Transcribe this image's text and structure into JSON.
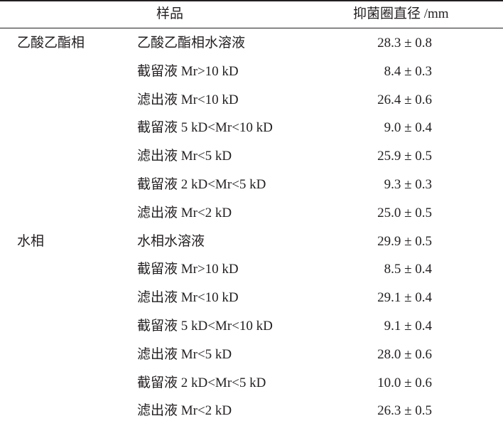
{
  "table": {
    "headers": [
      "样品",
      "抑菌圈直径 /mm"
    ],
    "rows": [
      {
        "group": "乙酸乙酯相",
        "sample": "乙酸乙酯相水溶液",
        "value": "28.3 ± 0.8"
      },
      {
        "group": "",
        "sample": "截留液 Mr>10 kD",
        "value": "8.4 ± 0.3"
      },
      {
        "group": "",
        "sample": "滤出液 Mr<10 kD",
        "value": "26.4 ± 0.6"
      },
      {
        "group": "",
        "sample": "截留液 5 kD<Mr<10 kD",
        "value": "9.0 ± 0.4"
      },
      {
        "group": "",
        "sample": "滤出液 Mr<5 kD",
        "value": "25.9 ± 0.5"
      },
      {
        "group": "",
        "sample": "截留液 2 kD<Mr<5 kD",
        "value": "9.3 ± 0.3"
      },
      {
        "group": "",
        "sample": "滤出液 Mr<2 kD",
        "value": "25.0 ± 0.5"
      },
      {
        "group": "水相",
        "sample": "水相水溶液",
        "value": "29.9 ± 0.5"
      },
      {
        "group": "",
        "sample": "截留液 Mr>10 kD",
        "value": "8.5 ± 0.4"
      },
      {
        "group": "",
        "sample": "滤出液 Mr<10 kD",
        "value": "29.1 ± 0.4"
      },
      {
        "group": "",
        "sample": "截留液 5 kD<Mr<10 kD",
        "value": "9.1 ± 0.4"
      },
      {
        "group": "",
        "sample": "滤出液 Mr<5 kD",
        "value": "28.0 ± 0.6"
      },
      {
        "group": "",
        "sample": "截留液 2 kD<Mr<5 kD",
        "value": "10.0 ± 0.6"
      },
      {
        "group": "",
        "sample": "滤出液 Mr<2 kD",
        "value": "26.3 ± 0.5"
      }
    ]
  }
}
